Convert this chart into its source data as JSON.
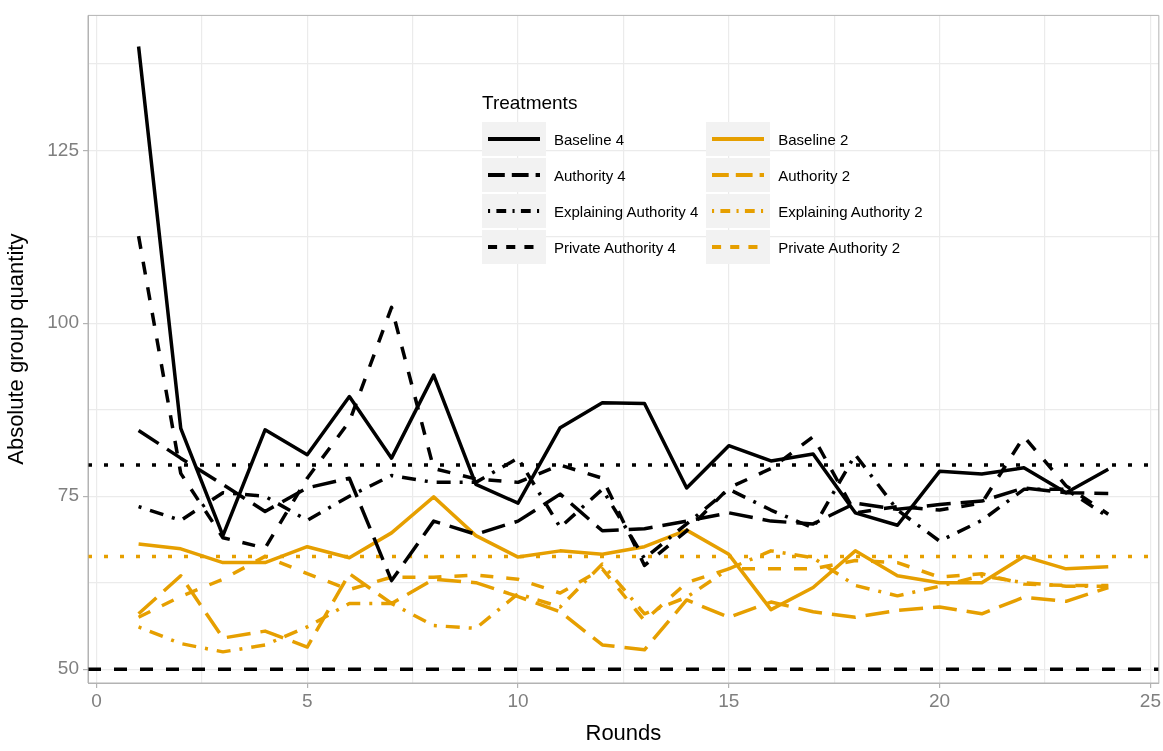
{
  "chart_data": {
    "type": "line",
    "xlabel": "Rounds",
    "ylabel": "Absolute group quantity",
    "legend_title": "Treatments",
    "legend": "top",
    "grid": true,
    "marker": "none",
    "x": [
      1,
      2,
      3,
      4,
      5,
      6,
      7,
      8,
      9,
      10,
      11,
      12,
      13,
      14,
      15,
      16,
      17,
      18,
      19,
      20,
      21,
      22,
      23,
      24
    ],
    "xlim": [
      -0.2,
      25.2
    ],
    "xticks": [
      0,
      {
        "value": 2.5,
        "label": null
      },
      5,
      {
        "value": 7.5,
        "label": null
      },
      10,
      {
        "value": 12.5,
        "label": null
      },
      15,
      {
        "value": 17.5,
        "label": null
      },
      20,
      {
        "value": 22.5,
        "label": null
      },
      25
    ],
    "ylim": [
      48,
      144.5
    ],
    "yticks": [
      50,
      {
        "value": 62.5,
        "label": null
      },
      75,
      {
        "value": 87.5,
        "label": null
      },
      100,
      {
        "value": 112.5,
        "label": null
      },
      125,
      {
        "value": 137.5,
        "label": null
      }
    ],
    "series": [
      {
        "name": "Baseline 4",
        "color": "#000000",
        "line_style": "solid",
        "values": [
          140,
          84.8,
          69.3,
          84.6,
          81,
          89.4,
          80.5,
          92.5,
          76.7,
          74,
          84.9,
          88.5,
          88.4,
          76.2,
          82.3,
          80.1,
          81.1,
          72.6,
          70.8,
          78.6,
          78.2,
          79.1,
          75.5,
          78.9
        ]
      },
      {
        "name": "Authority 4",
        "color": "#000000",
        "line_style": "longdash",
        "values": [
          84.5,
          80.5,
          76.7,
          72.8,
          76.2,
          77.6,
          62.8,
          71.4,
          69.5,
          71.4,
          75.3,
          70,
          70.3,
          71.4,
          72.6,
          71.4,
          71,
          74,
          73.1,
          73.8,
          74.3,
          76.2,
          75.5,
          75.4
        ]
      },
      {
        "name": "Explaining Authority 4",
        "color": "#000000",
        "line_style": "dotdash",
        "values": [
          73.5,
          71.5,
          75.5,
          75,
          71.5,
          75,
          78,
          77,
          77,
          80.5,
          70.5,
          76,
          66,
          71,
          76,
          73,
          70.4,
          81,
          73,
          68.5,
          71.5,
          76,
          76,
          72
        ]
      },
      {
        "name": "Private Authority 4",
        "color": "#000000",
        "line_style": "dashed",
        "values": [
          112.6,
          78.3,
          69,
          67.5,
          77.6,
          85.8,
          102.3,
          79,
          77.5,
          77,
          79.5,
          77.6,
          65,
          70,
          76.2,
          79,
          83.6,
          72.6,
          73.5,
          73,
          74,
          83.6,
          76.5,
          72.4
        ]
      },
      {
        "name": "Baseline 2",
        "color": "#e69f00",
        "line_style": "solid",
        "values": [
          68.1,
          67.4,
          65.4,
          65.4,
          67.7,
          66.1,
          69.7,
          74.9,
          69.3,
          66.2,
          67.1,
          66.6,
          67.7,
          70.1,
          66.6,
          58.6,
          61.8,
          67.1,
          63.5,
          62.5,
          62.5,
          66.3,
          64.5,
          64.8
        ]
      },
      {
        "name": "Authority 2",
        "color": "#e69f00",
        "line_style": "longdash",
        "values": [
          58,
          63.5,
          54.5,
          55.5,
          53.2,
          63.8,
          59.5,
          63,
          62.5,
          60.5,
          58.3,
          53.5,
          52.8,
          60,
          57.5,
          59.7,
          58.3,
          57.5,
          58.5,
          59,
          58,
          60.4,
          59.8,
          61.8
        ]
      },
      {
        "name": "Explaining Authority 2",
        "color": "#e69f00",
        "line_style": "dotdash",
        "values": [
          56.1,
          53.7,
          52.5,
          53.5,
          56.1,
          59.5,
          59.5,
          56.3,
          55.9,
          60.9,
          59,
          65.2,
          58,
          60.4,
          64.5,
          67.1,
          66.1,
          62.1,
          60.6,
          62,
          63.5,
          62.5,
          62,
          62
        ]
      },
      {
        "name": "Private Authority 2",
        "color": "#e69f00",
        "line_style": "dashed",
        "values": [
          57.5,
          60.5,
          63,
          66.3,
          63.8,
          61.5,
          63.3,
          63.3,
          63.6,
          63,
          61,
          64.5,
          57,
          62.5,
          64.5,
          64.5,
          64.5,
          65.7,
          65.4,
          63.3,
          63.8,
          62.3,
          62.1,
          62.1
        ]
      }
    ],
    "ref_lines": [
      {
        "axis": "y",
        "value": 79.5,
        "color": "#000000",
        "line_style": "dotted"
      },
      {
        "axis": "y",
        "value": 66.3,
        "color": "#e69f00",
        "line_style": "dotted"
      },
      {
        "axis": "y",
        "value": 50,
        "color": "#000000",
        "line_style": "dashed"
      }
    ]
  }
}
